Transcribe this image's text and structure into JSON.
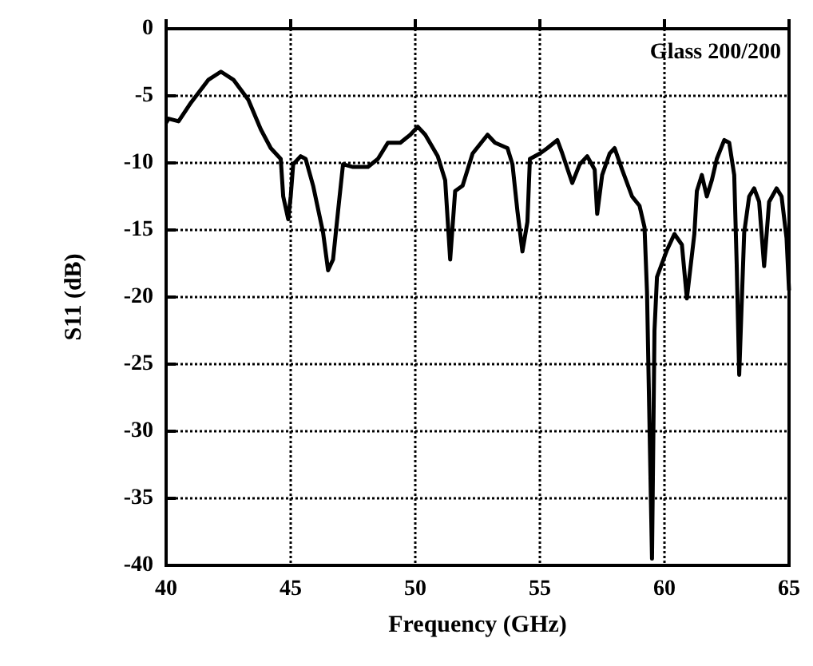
{
  "chart_data": {
    "type": "line",
    "xlabel": "Frequency (GHz)",
    "ylabel": "S11 (dB)",
    "annotations": [
      "Glass 200/200"
    ],
    "xlim": [
      40,
      65
    ],
    "xticks": [
      40,
      45,
      50,
      55,
      60,
      65
    ],
    "ylim": [
      -40,
      0
    ],
    "yticks": [
      0,
      -5,
      -10,
      -15,
      -20,
      -25,
      -30,
      -35,
      -40
    ],
    "grid": true,
    "marker": "none",
    "line_style": "solid",
    "series": [
      {
        "color": "#000000",
        "x": [
          40.0,
          40.1,
          40.5,
          41.0,
          41.7,
          42.2,
          42.7,
          43.3,
          43.8,
          44.2,
          44.6,
          44.7,
          44.9,
          45.0,
          45.1,
          45.4,
          45.6,
          45.9,
          46.3,
          46.5,
          46.7,
          46.9,
          47.1,
          47.5,
          48.1,
          48.5,
          48.9,
          49.4,
          49.8,
          50.1,
          50.4,
          50.9,
          51.2,
          51.4,
          51.6,
          51.9,
          52.3,
          52.9,
          53.2,
          53.7,
          53.9,
          54.1,
          54.3,
          54.5,
          54.6,
          55.0,
          55.3,
          55.7,
          55.9,
          56.3,
          56.6,
          56.9,
          57.2,
          57.3,
          57.5,
          57.8,
          58.0,
          58.3,
          58.7,
          59.0,
          59.2,
          59.3,
          59.5,
          59.6,
          59.7,
          60.1,
          60.4,
          60.7,
          60.9,
          61.0,
          61.2,
          61.3,
          61.5,
          61.7,
          61.9,
          62.1,
          62.4,
          62.6,
          62.8,
          62.9,
          63.0,
          63.2,
          63.4,
          63.6,
          63.8,
          64.0,
          64.2,
          64.5,
          64.7,
          64.9,
          65.0
        ],
        "values": [
          -7.0,
          -6.7,
          -6.9,
          -5.5,
          -3.8,
          -3.2,
          -3.8,
          -5.3,
          -7.5,
          -8.9,
          -9.7,
          -12.5,
          -14.2,
          -12.5,
          -10.1,
          -9.5,
          -9.7,
          -11.7,
          -15.2,
          -18.0,
          -17.2,
          -13.6,
          -10.1,
          -10.3,
          -10.3,
          -9.7,
          -8.5,
          -8.5,
          -7.9,
          -7.3,
          -7.9,
          -9.5,
          -11.3,
          -17.2,
          -12.1,
          -11.7,
          -9.3,
          -7.9,
          -8.5,
          -8.9,
          -10.1,
          -13.6,
          -16.6,
          -14.4,
          -9.7,
          -9.3,
          -8.9,
          -8.3,
          -9.3,
          -11.5,
          -10.1,
          -9.5,
          -10.5,
          -13.8,
          -10.9,
          -9.3,
          -8.9,
          -10.5,
          -12.5,
          -13.2,
          -14.8,
          -19.6,
          -39.5,
          -22.5,
          -18.5,
          -16.5,
          -15.3,
          -16.1,
          -20.1,
          -18.5,
          -15.3,
          -12.1,
          -10.9,
          -12.5,
          -11.3,
          -9.7,
          -8.3,
          -8.5,
          -10.9,
          -17.6,
          -25.8,
          -15.2,
          -12.5,
          -11.9,
          -12.9,
          -17.7,
          -12.9,
          -11.9,
          -12.5,
          -15.6,
          -19.5
        ]
      }
    ]
  }
}
